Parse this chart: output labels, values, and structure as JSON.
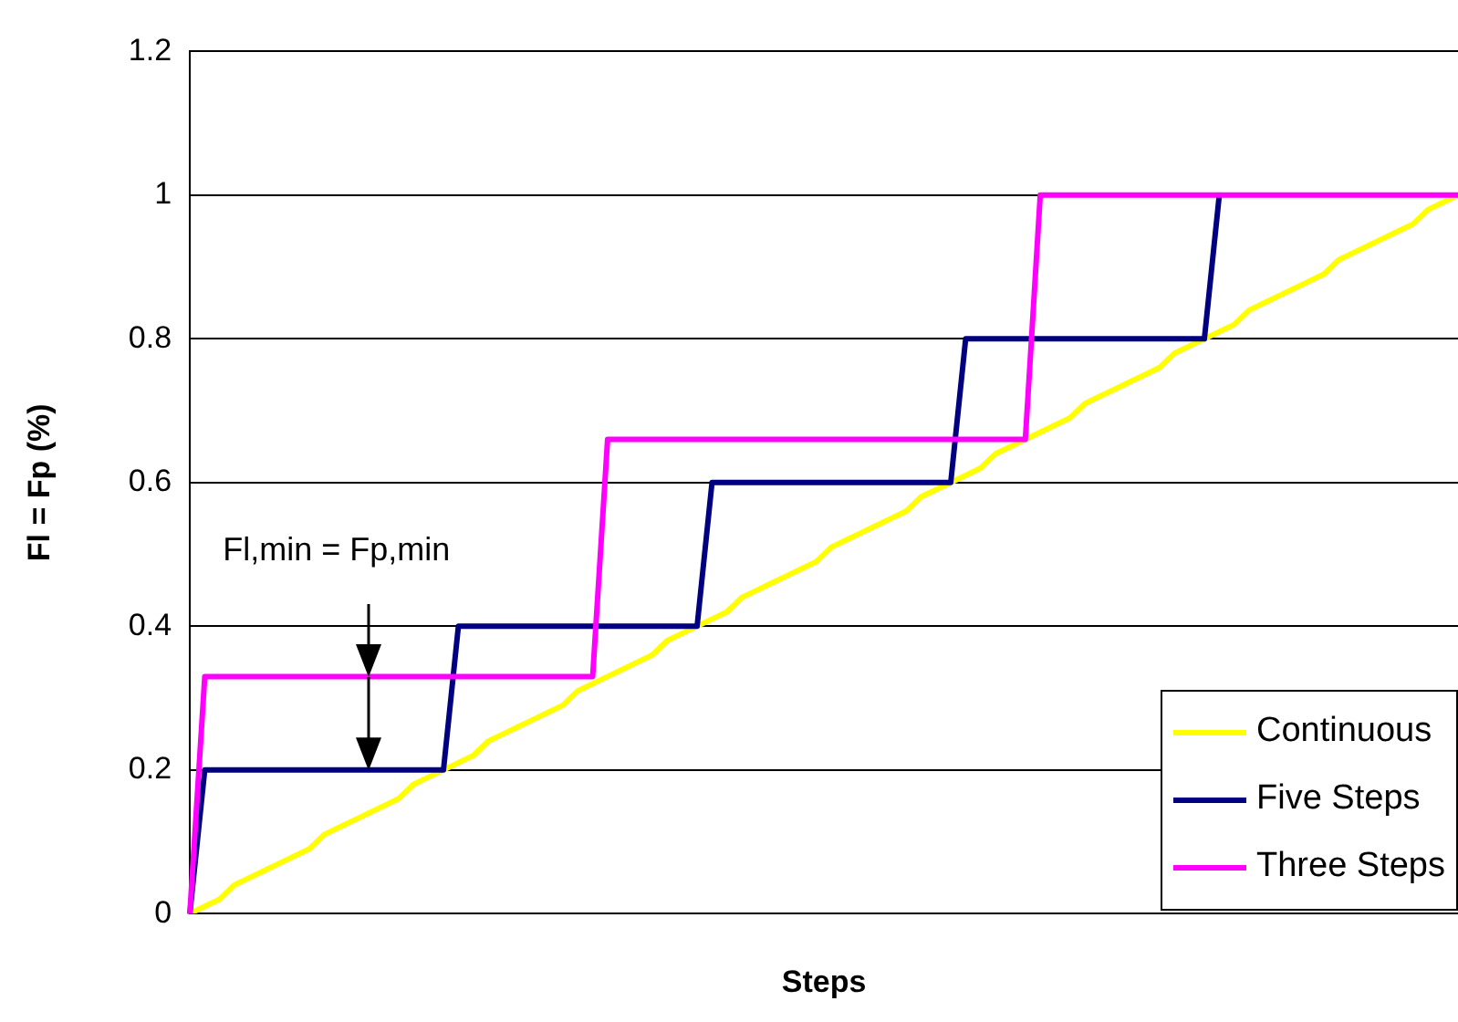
{
  "chart_data": {
    "type": "line",
    "xlabel": "Steps",
    "ylabel": "Fl = Fp (%)",
    "categories": [
      null,
      null,
      null,
      null,
      null,
      null,
      null,
      null,
      null,
      null,
      null,
      null,
      null,
      null,
      null,
      null,
      null,
      null,
      null,
      null,
      null,
      null,
      null,
      null,
      null,
      null,
      null,
      null,
      null,
      null,
      null,
      null,
      null,
      null,
      null,
      null,
      null,
      null,
      null,
      null,
      null,
      null,
      null,
      null,
      null,
      null,
      null,
      null,
      null,
      null,
      null,
      null,
      null,
      null,
      null,
      null,
      null,
      null,
      null,
      null,
      null,
      null,
      null,
      null,
      null,
      null,
      null,
      null,
      null,
      null,
      null,
      null,
      null,
      null,
      null,
      null,
      null,
      null,
      null,
      null,
      null,
      null,
      null,
      null,
      null,
      null
    ],
    "series": [
      {
        "name": "Continuous",
        "color": "#ffff00",
        "values": [
          0,
          0.01,
          0.02,
          0.04,
          0.05,
          0.06,
          0.07,
          0.08,
          0.09,
          0.11,
          0.12,
          0.13,
          0.14,
          0.15,
          0.16,
          0.18,
          0.19,
          0.2,
          0.21,
          0.22,
          0.24,
          0.25,
          0.26,
          0.27,
          0.28,
          0.29,
          0.31,
          0.32,
          0.33,
          0.34,
          0.35,
          0.36,
          0.38,
          0.39,
          0.4,
          0.41,
          0.42,
          0.44,
          0.45,
          0.46,
          0.47,
          0.48,
          0.49,
          0.51,
          0.52,
          0.53,
          0.54,
          0.55,
          0.56,
          0.58,
          0.59,
          0.6,
          0.61,
          0.62,
          0.64,
          0.65,
          0.66,
          0.67,
          0.68,
          0.69,
          0.71,
          0.72,
          0.73,
          0.74,
          0.75,
          0.76,
          0.78,
          0.79,
          0.8,
          0.81,
          0.82,
          0.84,
          0.85,
          0.86,
          0.87,
          0.88,
          0.89,
          0.91,
          0.92,
          0.93,
          0.94,
          0.95,
          0.96,
          0.98,
          0.99,
          1
        ]
      },
      {
        "name": "Five Steps",
        "color": "#000080",
        "values": [
          0,
          0.2,
          0.2,
          0.2,
          0.2,
          0.2,
          0.2,
          0.2,
          0.2,
          0.2,
          0.2,
          0.2,
          0.2,
          0.2,
          0.2,
          0.2,
          0.2,
          0.2,
          0.4,
          0.4,
          0.4,
          0.4,
          0.4,
          0.4,
          0.4,
          0.4,
          0.4,
          0.4,
          0.4,
          0.4,
          0.4,
          0.4,
          0.4,
          0.4,
          0.4,
          0.6,
          0.6,
          0.6,
          0.6,
          0.6,
          0.6,
          0.6,
          0.6,
          0.6,
          0.6,
          0.6,
          0.6,
          0.6,
          0.6,
          0.6,
          0.6,
          0.6,
          0.8,
          0.8,
          0.8,
          0.8,
          0.8,
          0.8,
          0.8,
          0.8,
          0.8,
          0.8,
          0.8,
          0.8,
          0.8,
          0.8,
          0.8,
          0.8,
          0.8,
          1,
          null,
          null,
          null,
          null,
          null,
          null,
          null,
          null,
          null,
          null,
          null,
          null,
          null,
          null,
          null,
          null
        ]
      },
      {
        "name": "Three Steps",
        "color": "#ff00ff",
        "values": [
          0,
          0.33,
          0.33,
          0.33,
          0.33,
          0.33,
          0.33,
          0.33,
          0.33,
          0.33,
          0.33,
          0.33,
          0.33,
          0.33,
          0.33,
          0.33,
          0.33,
          0.33,
          0.33,
          0.33,
          0.33,
          0.33,
          0.33,
          0.33,
          0.33,
          0.33,
          0.33,
          0.33,
          0.66,
          0.66,
          0.66,
          0.66,
          0.66,
          0.66,
          0.66,
          0.66,
          0.66,
          0.66,
          0.66,
          0.66,
          0.66,
          0.66,
          0.66,
          0.66,
          0.66,
          0.66,
          0.66,
          0.66,
          0.66,
          0.66,
          0.66,
          0.66,
          0.66,
          0.66,
          0.66,
          0.66,
          0.66,
          1,
          1,
          1,
          1,
          1,
          1,
          1,
          1,
          1,
          1,
          1,
          1,
          1,
          1,
          1,
          1,
          1,
          1,
          1,
          1,
          1,
          1,
          1,
          1,
          1,
          1,
          1,
          1,
          1
        ]
      }
    ],
    "ylim": [
      0,
      1.2
    ],
    "yticks": [
      0,
      0.2,
      0.4,
      0.6,
      0.8,
      1,
      1.2
    ],
    "grid": "y",
    "legend": "bottom right",
    "tick_labels": "y",
    "marker": "none",
    "line_style": "solid",
    "annotations": [
      "Fl,min = Fp,min"
    ]
  }
}
